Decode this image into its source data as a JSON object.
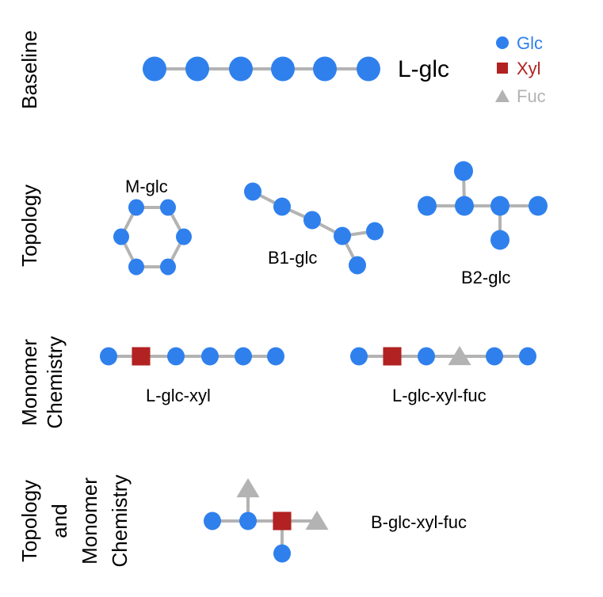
{
  "colors": {
    "glc": "#2f80ed",
    "xyl": "#b22222",
    "fuc": "#b3b3b3",
    "bond": "#b3b3b3",
    "text": "#000000"
  },
  "legend": {
    "items": [
      {
        "label": "Glc",
        "shape": "circle",
        "color": "#2f80ed"
      },
      {
        "label": "Xyl",
        "shape": "square",
        "color": "#b22222"
      },
      {
        "label": "Fuc",
        "shape": "triangle",
        "color": "#b3b3b3"
      }
    ]
  },
  "rows": [
    {
      "lines": [
        "Baseline"
      ]
    },
    {
      "lines": [
        "Topology"
      ]
    },
    {
      "lines": [
        "Monomer",
        "Chemistry"
      ]
    },
    {
      "lines": [
        "Topology",
        "and",
        "Monomer",
        "Chemistry"
      ]
    }
  ],
  "molecules": [
    {
      "label": "L-glc",
      "composition": [
        "Glc",
        "Glc",
        "Glc",
        "Glc",
        "Glc",
        "Glc"
      ],
      "topology": "linear"
    },
    {
      "label": "M-glc",
      "composition": [
        "Glc",
        "Glc",
        "Glc",
        "Glc",
        "Glc",
        "Glc"
      ],
      "topology": "macrocycle"
    },
    {
      "label": "B1-glc",
      "composition": [
        "Glc",
        "Glc",
        "Glc",
        "Glc",
        "Glc",
        "Glc"
      ],
      "topology": "branched"
    },
    {
      "label": "B2-glc",
      "composition": [
        "Glc",
        "Glc",
        "Glc",
        "Glc",
        "Glc",
        "Glc"
      ],
      "topology": "branched"
    },
    {
      "label": "L-glc-xyl",
      "composition": [
        "Glc",
        "Xyl",
        "Glc",
        "Glc",
        "Glc",
        "Glc"
      ],
      "topology": "linear"
    },
    {
      "label": "L-glc-xyl-fuc",
      "composition": [
        "Glc",
        "Xyl",
        "Glc",
        "Fuc",
        "Glc",
        "Glc"
      ],
      "topology": "linear"
    },
    {
      "label": "B-glc-xyl-fuc",
      "composition": [
        "Glc",
        "Glc",
        "Fuc",
        "Xyl",
        "Fuc",
        "Glc"
      ],
      "topology": "branched"
    }
  ]
}
